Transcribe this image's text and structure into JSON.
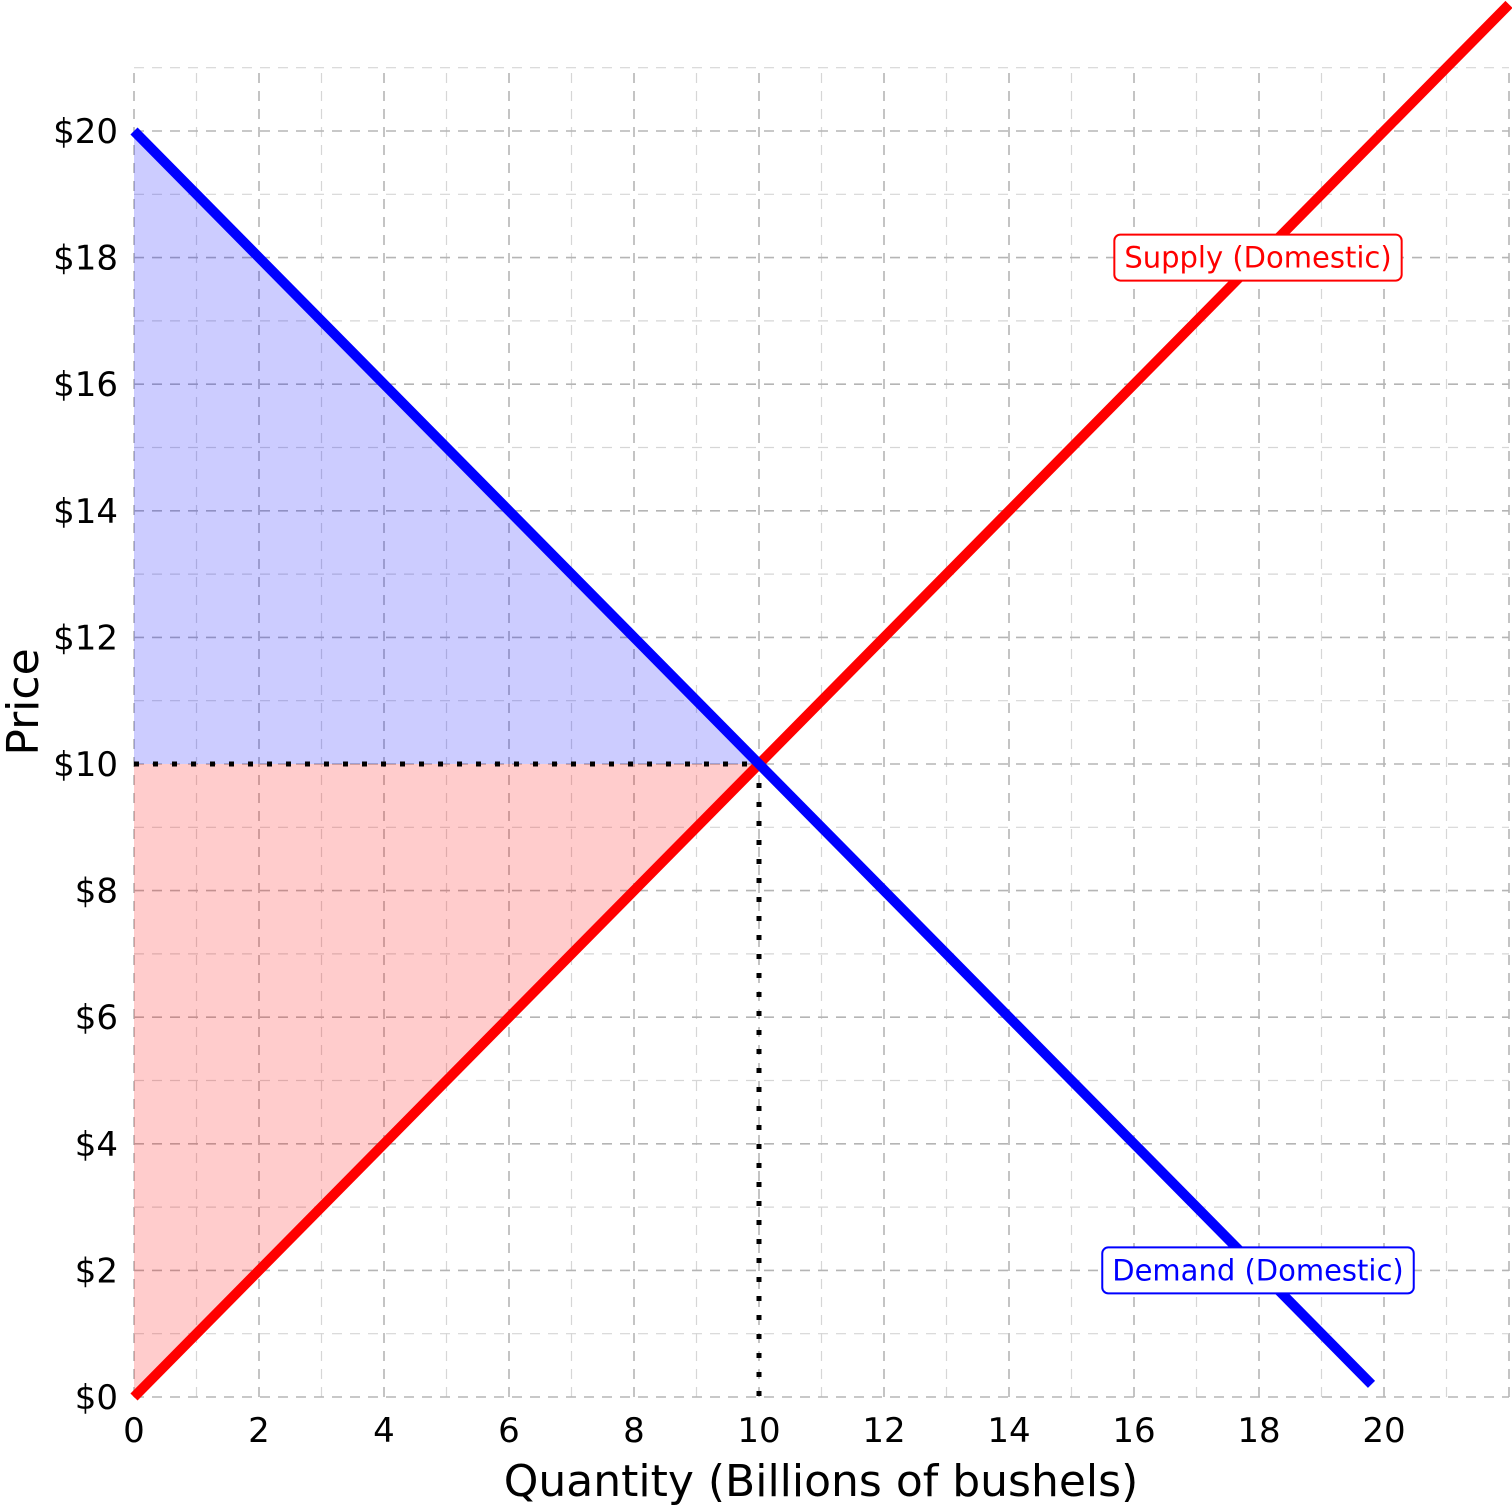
{
  "chart_data": {
    "type": "line",
    "title": "",
    "xlabel": "Quantity (Billions of bushels)",
    "ylabel": "Price",
    "xlim": [
      0,
      22
    ],
    "ylim": [
      0,
      21
    ],
    "x_ticks": [
      0,
      2,
      4,
      6,
      8,
      10,
      12,
      14,
      16,
      18,
      20
    ],
    "x_tick_labels": [
      "0",
      "2",
      "4",
      "6",
      "8",
      "10",
      "12",
      "14",
      "16",
      "18",
      "20"
    ],
    "y_ticks": [
      0,
      2,
      4,
      6,
      8,
      10,
      12,
      14,
      16,
      18,
      20
    ],
    "y_tick_labels": [
      "$0",
      "$2",
      "$4",
      "$6",
      "$8",
      "$10",
      "$12",
      "$14",
      "$16",
      "$18",
      "$20"
    ],
    "grid": true,
    "series": [
      {
        "name": "Supply (Domestic)",
        "color": "#ff0000",
        "x": [
          0,
          22
        ],
        "y": [
          0,
          22
        ],
        "label_position": [
          18,
          18
        ]
      },
      {
        "name": "Demand (Domestic)",
        "color": "#0000ff",
        "x": [
          0,
          19.8
        ],
        "y": [
          20,
          0.2
        ],
        "label_position": [
          18,
          2
        ]
      }
    ],
    "equilibrium": {
      "x": 10,
      "y": 10
    },
    "shaded_regions": [
      {
        "region": "consumer-surplus",
        "color": "#0000ff",
        "opacity": 0.2,
        "points": [
          [
            0,
            20
          ],
          [
            10,
            10
          ],
          [
            0,
            10
          ]
        ]
      },
      {
        "region": "producer-surplus",
        "color": "#ff0000",
        "opacity": 0.2,
        "points": [
          [
            0,
            0
          ],
          [
            10,
            10
          ],
          [
            0,
            10
          ]
        ]
      }
    ]
  }
}
